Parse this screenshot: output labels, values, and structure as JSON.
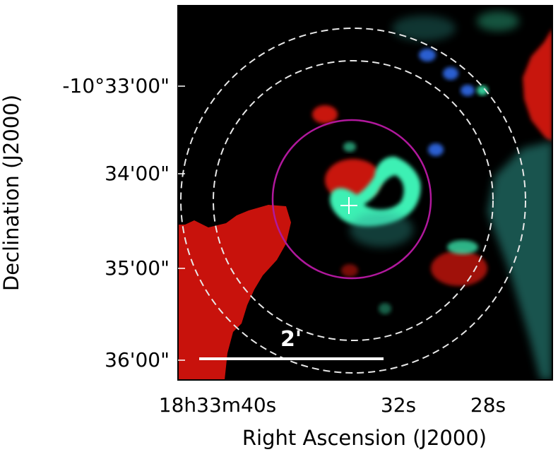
{
  "image": {
    "frame_color": "#000000",
    "background_color": "#000000"
  },
  "axes": {
    "x_title": "Right Ascension (J2000)",
    "y_title": "Declination (J2000)",
    "x_ticks": [
      "18h33m40s",
      "32s",
      "28s"
    ],
    "y_ticks": [
      "-10°33'00\"",
      "34'00\"",
      "35'00\"",
      "36'00\""
    ]
  },
  "scale_bar": {
    "label": "2'",
    "color": "#ffffff"
  },
  "overlays": {
    "inner_circle_color": "#b0189c",
    "dashed_annulus_color": "#e8e8e8",
    "center_marker_color": "#ffffff"
  },
  "emission": {
    "red_color": "#c8120c",
    "green_color": "#3cf0b4",
    "blue_color": "#2a5fd0",
    "teal_color": "#2f9a8f"
  }
}
